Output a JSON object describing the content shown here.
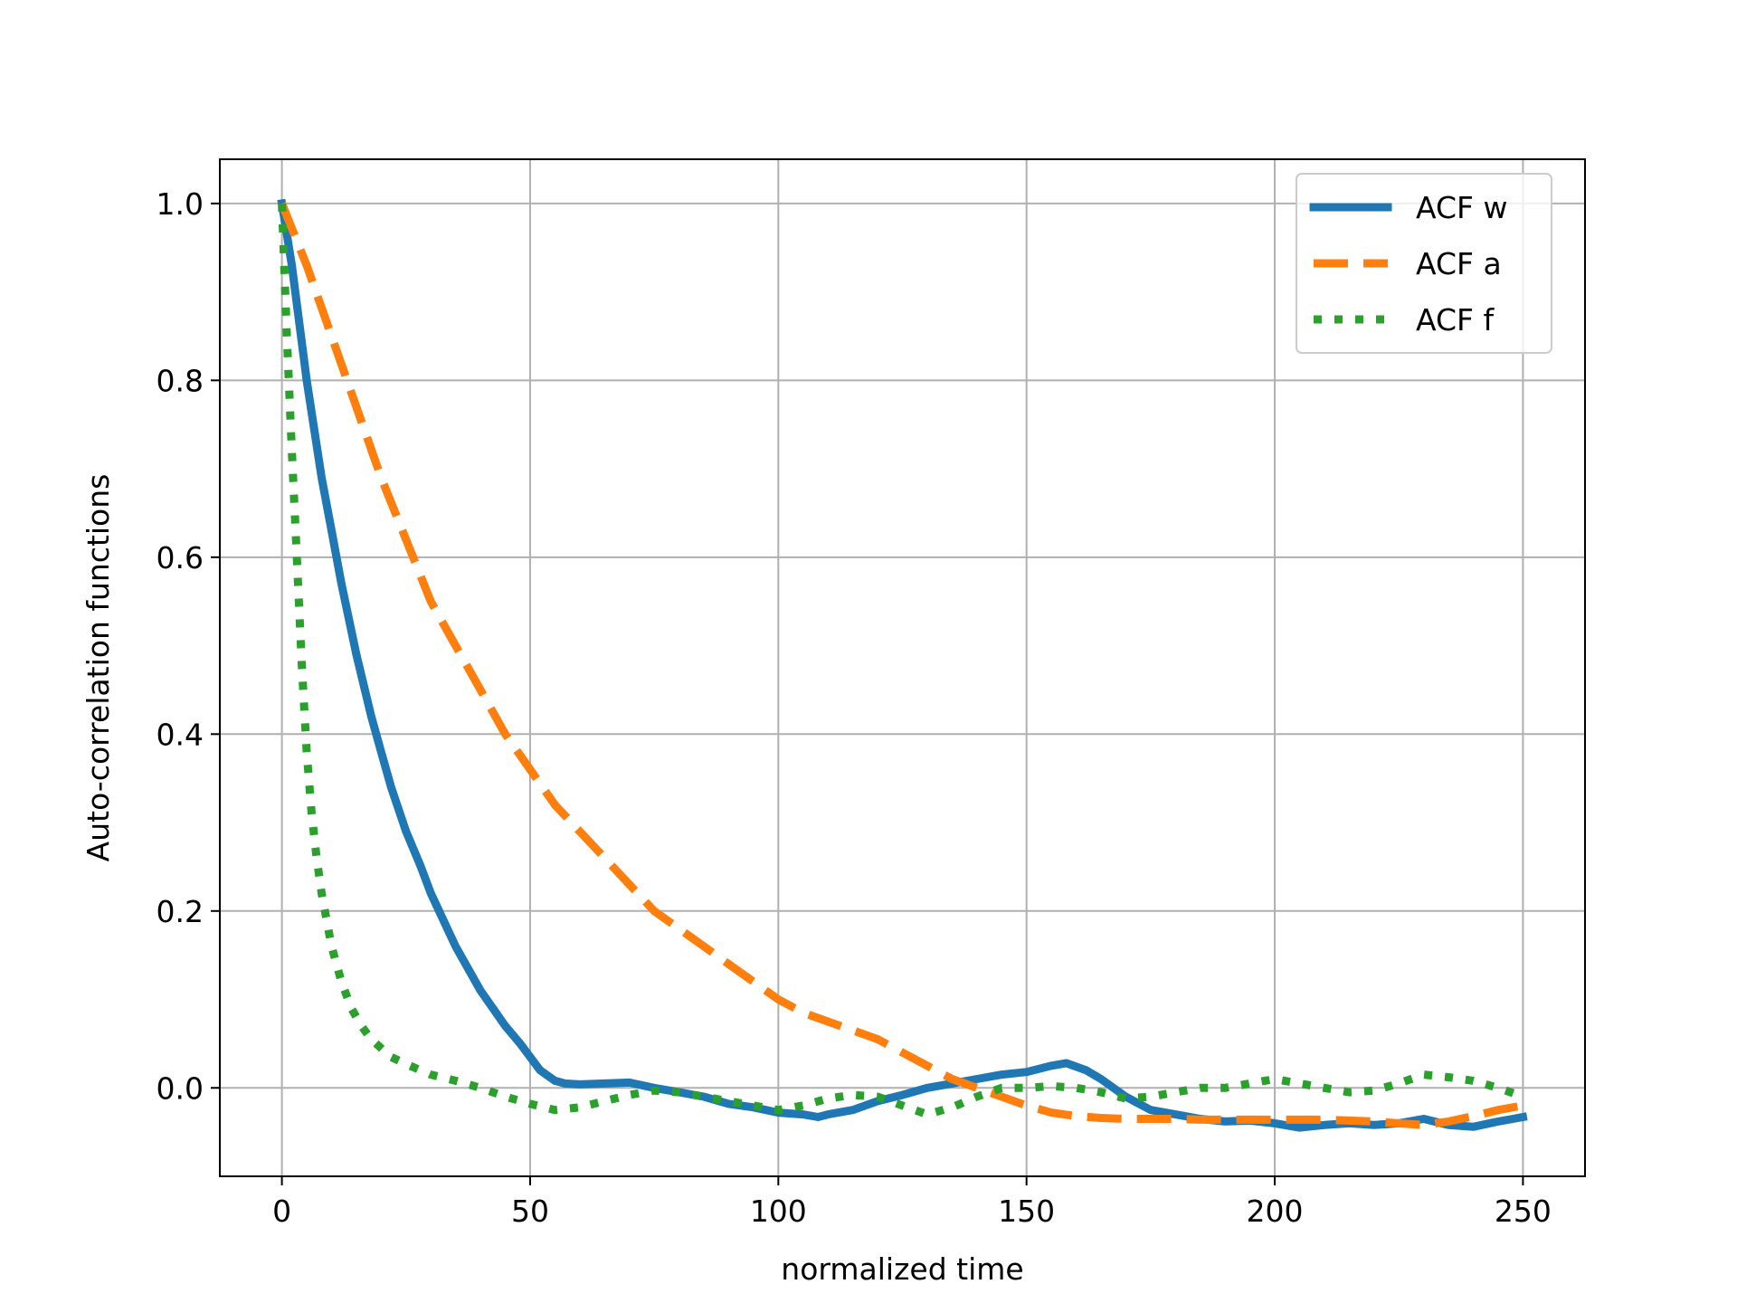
{
  "chart_data": {
    "type": "line",
    "title": "",
    "xlabel": "normalized time",
    "ylabel": "Auto-correlation functions",
    "xlim": [
      -12.5,
      262.5
    ],
    "ylim": [
      -0.1,
      1.05
    ],
    "x_ticks": [
      0,
      50,
      100,
      150,
      200,
      250
    ],
    "y_ticks": [
      0.0,
      0.2,
      0.4,
      0.6,
      0.8,
      1.0
    ],
    "x_tick_labels": [
      "0",
      "50",
      "100",
      "150",
      "200",
      "250"
    ],
    "y_tick_labels": [
      "0.0",
      "0.2",
      "0.4",
      "0.6",
      "0.8",
      "1.0"
    ],
    "grid": true,
    "legend_position": "top-right",
    "series": [
      {
        "name": "ACF w",
        "color": "#1f77b4",
        "style": "solid",
        "x": [
          0,
          2,
          5,
          8,
          10,
          12,
          15,
          18,
          20,
          22,
          25,
          28,
          30,
          35,
          40,
          45,
          48,
          50,
          52,
          55,
          57,
          60,
          65,
          70,
          75,
          80,
          85,
          90,
          95,
          100,
          105,
          108,
          110,
          115,
          120,
          125,
          130,
          135,
          140,
          145,
          150,
          155,
          158,
          162,
          165,
          170,
          175,
          180,
          185,
          190,
          195,
          200,
          205,
          210,
          215,
          220,
          225,
          230,
          235,
          240,
          245,
          248,
          250
        ],
        "y": [
          1.0,
          0.93,
          0.8,
          0.69,
          0.63,
          0.57,
          0.49,
          0.42,
          0.38,
          0.34,
          0.29,
          0.25,
          0.22,
          0.16,
          0.11,
          0.07,
          0.05,
          0.035,
          0.02,
          0.008,
          0.005,
          0.004,
          0.005,
          0.006,
          0.0,
          -0.005,
          -0.01,
          -0.018,
          -0.022,
          -0.028,
          -0.03,
          -0.033,
          -0.03,
          -0.025,
          -0.015,
          -0.008,
          0.0,
          0.005,
          0.01,
          0.015,
          0.018,
          0.025,
          0.028,
          0.02,
          0.01,
          -0.01,
          -0.025,
          -0.03,
          -0.035,
          -0.038,
          -0.037,
          -0.04,
          -0.045,
          -0.042,
          -0.04,
          -0.042,
          -0.04,
          -0.035,
          -0.042,
          -0.044,
          -0.038,
          -0.035,
          -0.033
        ]
      },
      {
        "name": "ACF a",
        "color": "#ff7f0e",
        "style": "dashed",
        "x": [
          0,
          5,
          10,
          15,
          20,
          25,
          30,
          35,
          40,
          45,
          50,
          55,
          60,
          65,
          70,
          75,
          80,
          85,
          90,
          95,
          100,
          105,
          110,
          115,
          120,
          125,
          130,
          135,
          140,
          145,
          150,
          155,
          160,
          165,
          170,
          175,
          180,
          185,
          190,
          195,
          200,
          205,
          210,
          215,
          220,
          225,
          230,
          235,
          240,
          245,
          250
        ],
        "y": [
          1.0,
          0.93,
          0.85,
          0.77,
          0.69,
          0.62,
          0.55,
          0.5,
          0.45,
          0.4,
          0.36,
          0.32,
          0.29,
          0.26,
          0.23,
          0.2,
          0.18,
          0.16,
          0.14,
          0.12,
          0.1,
          0.085,
          0.075,
          0.065,
          0.055,
          0.04,
          0.025,
          0.01,
          0.0,
          -0.01,
          -0.02,
          -0.028,
          -0.032,
          -0.034,
          -0.035,
          -0.035,
          -0.035,
          -0.036,
          -0.036,
          -0.036,
          -0.036,
          -0.036,
          -0.036,
          -0.037,
          -0.038,
          -0.04,
          -0.042,
          -0.038,
          -0.032,
          -0.025,
          -0.02
        ]
      },
      {
        "name": "ACF f",
        "color": "#2ca02c",
        "style": "dotted",
        "x": [
          0,
          1,
          2,
          3,
          4,
          5,
          6,
          7,
          8,
          10,
          12,
          14,
          16,
          18,
          20,
          22,
          25,
          30,
          35,
          40,
          45,
          50,
          55,
          60,
          65,
          70,
          75,
          80,
          85,
          90,
          95,
          100,
          105,
          110,
          115,
          120,
          125,
          130,
          135,
          140,
          145,
          150,
          155,
          160,
          165,
          170,
          175,
          180,
          185,
          190,
          195,
          200,
          205,
          210,
          215,
          220,
          225,
          230,
          235,
          240,
          245,
          250
        ],
        "y": [
          1.0,
          0.85,
          0.72,
          0.6,
          0.48,
          0.38,
          0.31,
          0.26,
          0.22,
          0.16,
          0.12,
          0.09,
          0.07,
          0.055,
          0.045,
          0.035,
          0.027,
          0.015,
          0.008,
          0.0,
          -0.01,
          -0.018,
          -0.025,
          -0.022,
          -0.015,
          -0.008,
          -0.003,
          -0.005,
          -0.01,
          -0.015,
          -0.02,
          -0.025,
          -0.02,
          -0.012,
          -0.008,
          -0.01,
          -0.02,
          -0.03,
          -0.022,
          -0.01,
          0.0,
          0.0,
          0.002,
          0.0,
          -0.005,
          -0.012,
          -0.01,
          -0.005,
          0.0,
          0.0,
          0.005,
          0.01,
          0.005,
          0.0,
          -0.005,
          -0.003,
          0.005,
          0.015,
          0.012,
          0.008,
          0.0,
          -0.01
        ]
      }
    ]
  }
}
